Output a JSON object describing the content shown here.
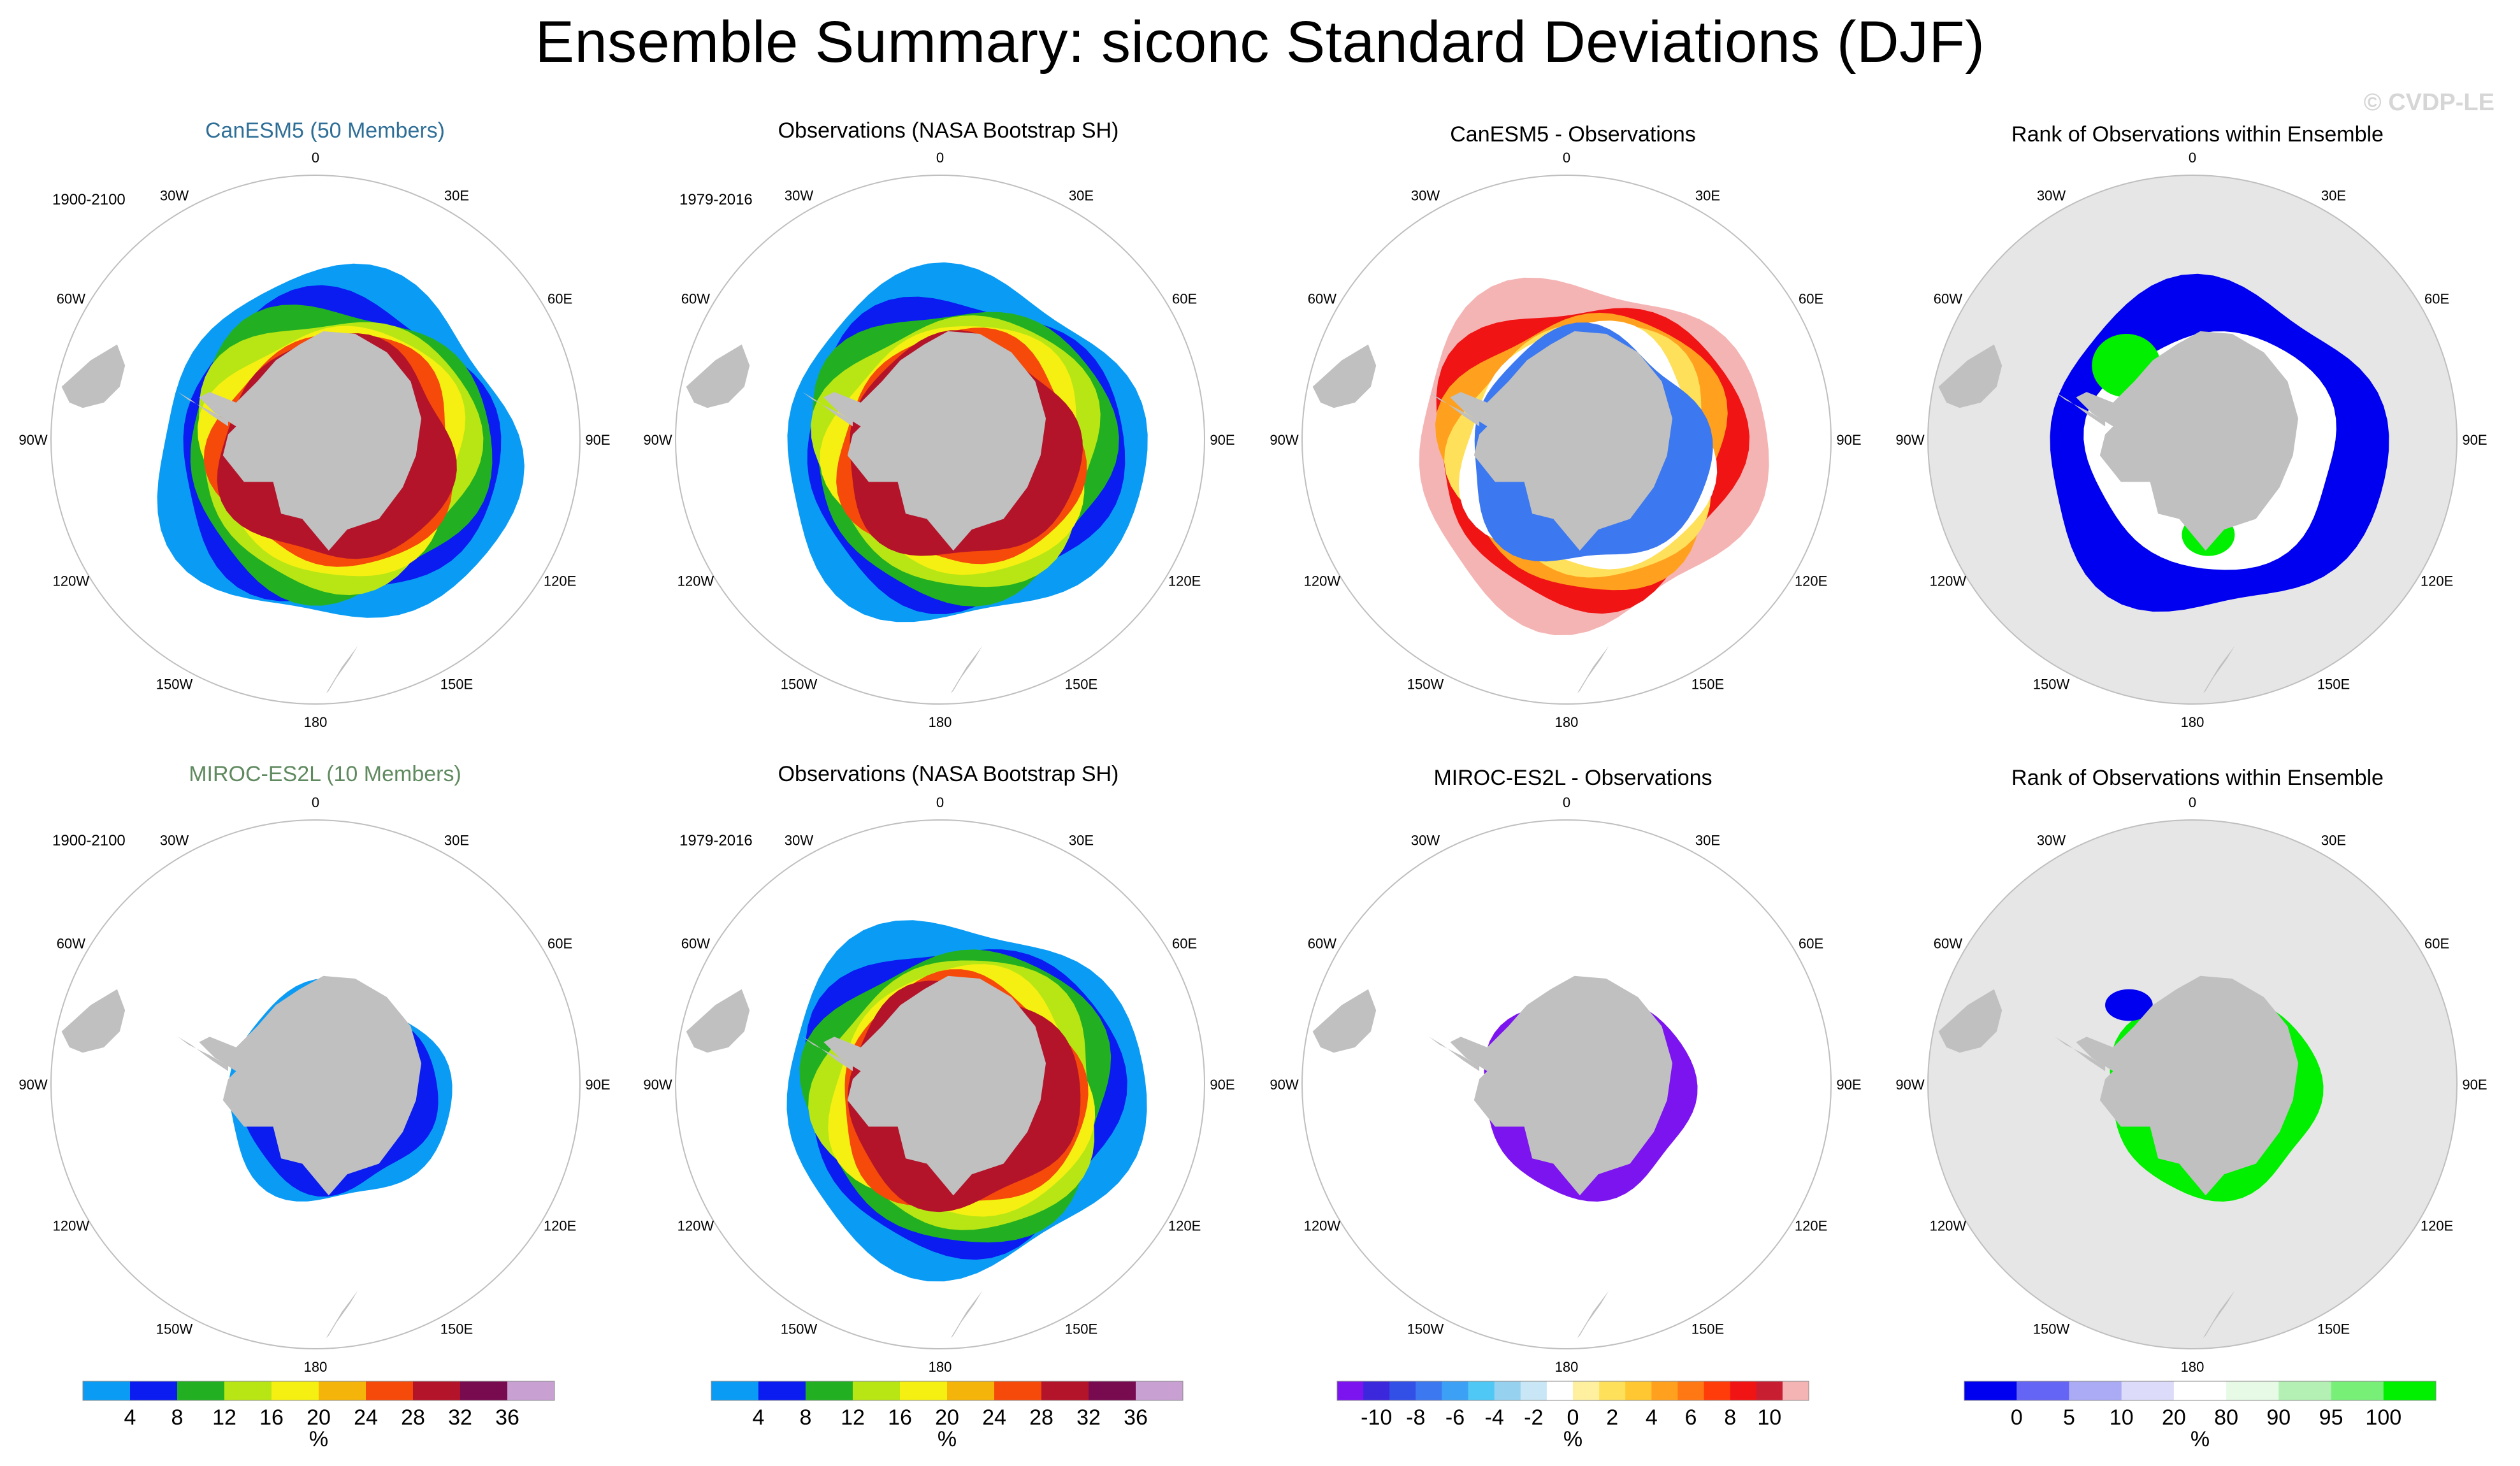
{
  "figure": {
    "title": "Ensemble Summary: siconc Standard Deviations (DJF)",
    "watermark": "© CVDP-LE"
  },
  "colors": {
    "land": "#c0c0c0",
    "map_circle": "#bfbfbf",
    "rank_background": "#e6e6e6"
  },
  "longitude_labels": [
    "0",
    "30E",
    "60E",
    "90E",
    "120E",
    "150E",
    "180",
    "150W",
    "120W",
    "90W",
    "60W",
    "30W"
  ],
  "rows": [
    {
      "model_title": "CanESM5 (50 Members)",
      "model_title_color": "#2e6e96",
      "model_period": "1900-2100",
      "obs_title": "Observations (NASA Bootstrap SH)",
      "obs_period": "1979-2016",
      "diff_title": "CanESM5 - Observations",
      "rank_title": "Rank of Observations within Ensemble"
    },
    {
      "model_title": "MIROC-ES2L (10 Members)",
      "model_title_color": "#5f8a5f",
      "model_period": "1900-2100",
      "obs_title": "Observations (NASA Bootstrap SH)",
      "obs_period": "1979-2016",
      "diff_title": "MIROC-ES2L - Observations",
      "rank_title": "Rank of Observations within Ensemble"
    }
  ],
  "chart_data": [
    {
      "type": "colorbar",
      "name": "Standard deviation (model and observations)",
      "unit": "%",
      "colors": [
        "#0a9cf5",
        "#0a1cf0",
        "#22b022",
        "#b8e614",
        "#f5f012",
        "#f5b40a",
        "#f54a0a",
        "#b4142a",
        "#780a50",
        "#c8a0d2"
      ],
      "tick_labels": [
        "4",
        "8",
        "12",
        "16",
        "20",
        "24",
        "28",
        "32",
        "36"
      ],
      "used_in": [
        "model",
        "observations"
      ]
    },
    {
      "type": "colorbar",
      "name": "Model minus observations",
      "unit": "%",
      "colors": [
        "#7c14f0",
        "#3c28dc",
        "#3250e6",
        "#3c78f0",
        "#3ca0f5",
        "#50c8f5",
        "#96d2f0",
        "#c8e6f5",
        "#ffffff",
        "#fff0a0",
        "#ffe05a",
        "#ffc832",
        "#ffa01e",
        "#ff7814",
        "#ff3c0a",
        "#f01414",
        "#c81e32",
        "#f5b4b4"
      ],
      "tick_labels": [
        "-10",
        "-8",
        "-6",
        "-4",
        "-2",
        "0",
        "2",
        "4",
        "6",
        "8",
        "10"
      ],
      "used_in": [
        "difference"
      ]
    },
    {
      "type": "colorbar",
      "name": "Rank of observations within ensemble",
      "unit": "%",
      "colors": [
        "#0000f0",
        "#6464f5",
        "#aaaaf5",
        "#dcdcfa",
        "#ffffff",
        "#e6fae6",
        "#b4f0b4",
        "#78f078",
        "#00f000"
      ],
      "tick_labels": [
        "0",
        "5",
        "10",
        "20",
        "80",
        "90",
        "95",
        "100"
      ],
      "used_in": [
        "rank"
      ]
    }
  ]
}
